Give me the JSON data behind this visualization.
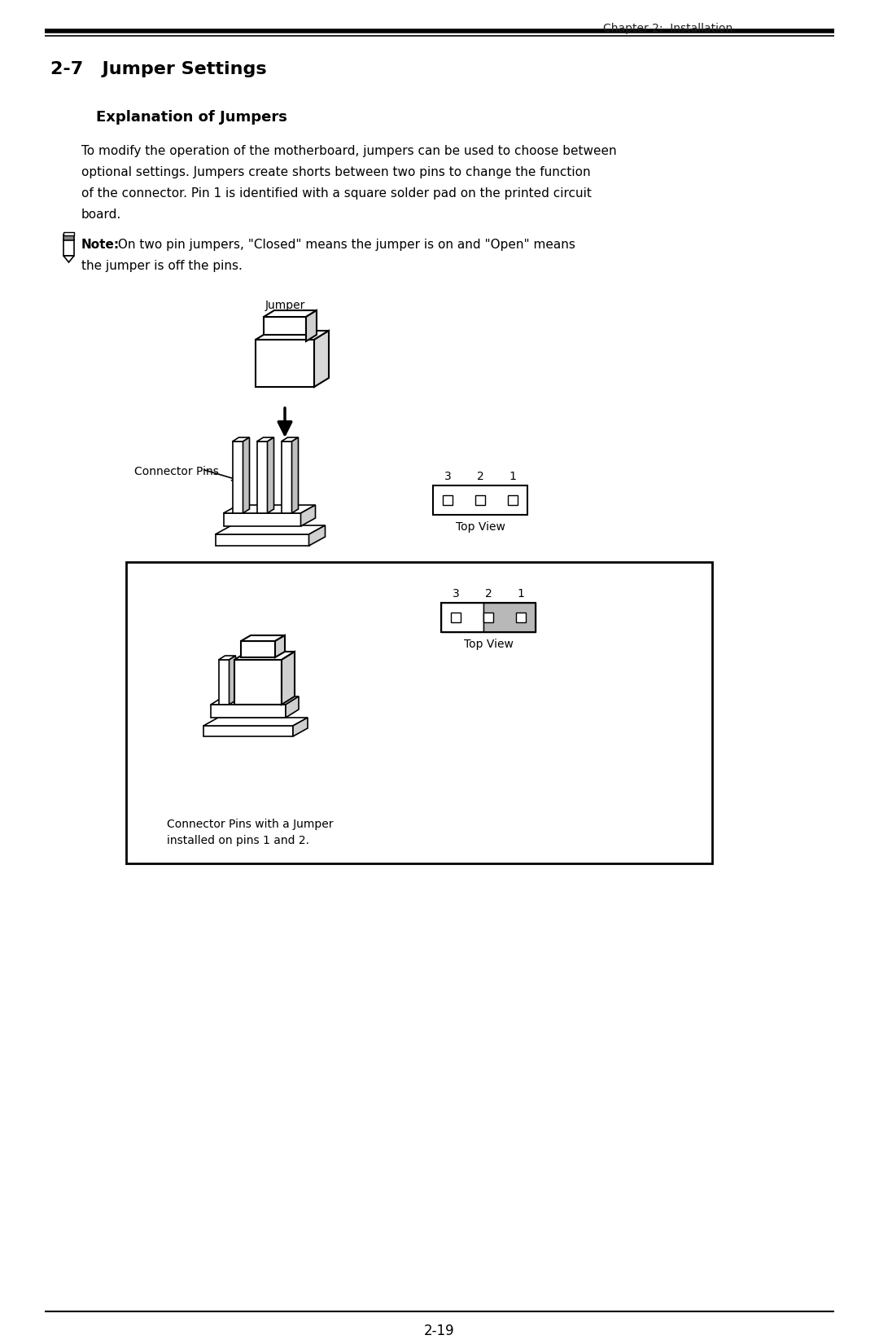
{
  "bg_color": "#ffffff",
  "header_text": "Chapter 2:  Installation",
  "chapter_title": "2-7   Jumper Settings",
  "section_title": "Explanation of Jumpers",
  "body_line1": "To modify the operation of the motherboard, jumpers can be used to choose between",
  "body_line2": "optional settings. Jumpers create shorts between two pins to change the function",
  "body_line3": "of the connector. Pin 1 is identified with a square solder pad on the printed circuit",
  "body_line4": "board.",
  "note_bold": "Note:",
  "note_rest1": " On two pin jumpers, \"Closed\" means the jumper is on and \"Open\" means",
  "note_rest2": "the jumper is off the pins.",
  "jumper_label": "Jumper",
  "connector_pins_label": "Connector Pins",
  "top_view_label": "Top View",
  "top_view_label2": "Top View",
  "box_caption1": "Connector Pins with a Jumper",
  "box_caption2": "installed on pins 1 and 2.",
  "pin_numbers": [
    "3",
    "2",
    "1"
  ],
  "page_number": "2-19",
  "gray_color": "#b8b8b8",
  "dark_gray": "#c8c8c8"
}
